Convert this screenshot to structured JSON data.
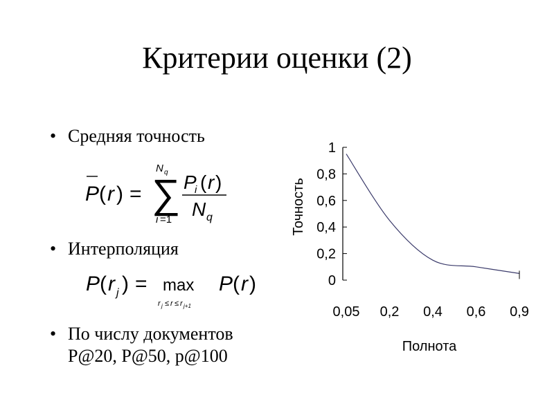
{
  "slide": {
    "title": "Критерии оценки (2)",
    "bullets": [
      {
        "text": "Средняя точность"
      },
      {
        "text": "Интерполяция"
      },
      {
        "text": "По числу документов",
        "subtext": "P@20, P@50, p@100"
      }
    ],
    "formula1": {
      "lhs": "P(r)",
      "eq": "=",
      "sum_upper": "Nq",
      "sum_lower": "i=1",
      "numerator": "Pi(r)",
      "denominator": "Nq"
    },
    "formula2": {
      "lhs": "P(rj)",
      "eq": "=",
      "op": "max",
      "op_sub": "rj≤r≤rj+1",
      "rhs": "P(r)"
    }
  },
  "chart_data": {
    "type": "line",
    "xlabel": "Полнота",
    "ylabel": "Точность",
    "x_ticks": [
      "0,05",
      "0,2",
      "0,4",
      "0,6",
      "0,9"
    ],
    "y_ticks": [
      "0",
      "0,2",
      "0,4",
      "0,6",
      "0,8",
      "1"
    ],
    "ylim": [
      0,
      1
    ],
    "series": [
      {
        "x": [
          0.05,
          0.2,
          0.4,
          0.6,
          0.9
        ],
        "values": [
          0.95,
          0.45,
          0.15,
          0.1,
          0.05
        ]
      }
    ],
    "grid": false
  }
}
